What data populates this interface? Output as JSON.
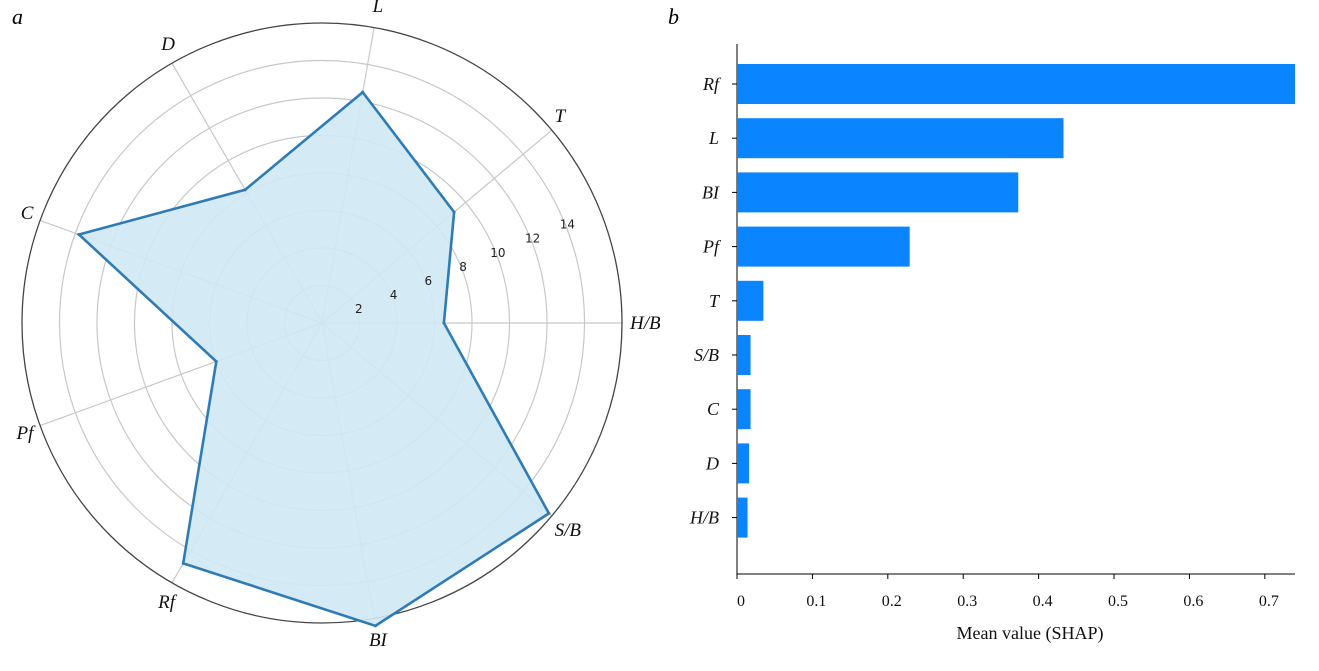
{
  "panel_letters": {
    "a": "a",
    "b": "b"
  },
  "colors": {
    "radar_line": "#2e7bb5",
    "radar_fill": "#cfe8f3",
    "grid": "#c8c8c8",
    "outer_ring": "#444444",
    "bar": "#0a84ff",
    "axis": "#000000"
  },
  "chart_data": [
    {
      "type": "radar",
      "categories": [
        "H/B",
        "T",
        "L",
        "D",
        "C",
        "Pf",
        "Rf",
        "BI",
        "S/B"
      ],
      "values": [
        6.5,
        9.2,
        12.5,
        8.2,
        13.8,
        6.0,
        14.8,
        16.4,
        15.8
      ],
      "r_ticks": [
        "2",
        "4",
        "6",
        "8",
        "10",
        "12",
        "14"
      ],
      "r_tick_values": [
        2,
        4,
        6,
        8,
        10,
        12,
        14
      ],
      "rlim": [
        0,
        16
      ],
      "grid": true
    },
    {
      "type": "bar",
      "orientation": "horizontal",
      "categories": [
        "Rf",
        "L",
        "BI",
        "Pf",
        "T",
        "S/B",
        "C",
        "D",
        "H/B"
      ],
      "values": [
        0.74,
        0.433,
        0.373,
        0.229,
        0.035,
        0.018,
        0.018,
        0.016,
        0.014
      ],
      "xlabel": "Mean value (SHAP)",
      "x_ticks": [
        "0",
        "0.1",
        "0.2",
        "0.3",
        "0.4",
        "0.5",
        "0.6",
        "0.7"
      ],
      "x_tick_values": [
        0,
        0.1,
        0.2,
        0.3,
        0.4,
        0.5,
        0.6,
        0.7
      ],
      "xlim": [
        0,
        0.74
      ],
      "grid": false
    }
  ]
}
